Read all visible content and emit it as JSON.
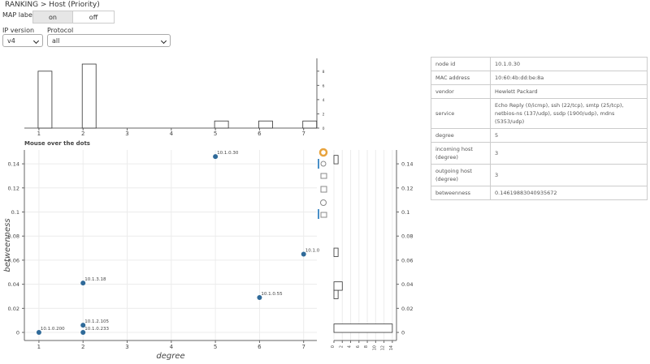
{
  "breadcrumb": "RANKING > Host (Priority)",
  "map_label": {
    "label": "MAP label",
    "options": [
      "on",
      "off"
    ]
  },
  "ip_version": {
    "label": "IP version",
    "value": "v4"
  },
  "protocol": {
    "label": "Protocol",
    "value": "all"
  },
  "chart_data": [
    {
      "type": "bar",
      "x": [
        1,
        2,
        5,
        6,
        7
      ],
      "values": [
        8,
        9,
        1,
        1,
        1
      ],
      "color": "#ffffff",
      "xlim": [
        0.67,
        7.3
      ],
      "xticks": [
        1,
        2,
        3,
        4,
        5,
        6,
        7
      ],
      "ylim": [
        0,
        9.8
      ],
      "yticks": [
        0,
        2,
        4,
        6,
        8
      ],
      "grid": false
    },
    {
      "type": "scatter",
      "title": "Mouse over the dots",
      "x_label": "degree",
      "y_label": "betweenness",
      "x": [
        1,
        2,
        2,
        2,
        5,
        6,
        7
      ],
      "values": [
        0,
        0.041,
        0.006,
        0,
        0.146,
        0.029,
        0.065
      ],
      "point_labels": [
        "10.1.0.200",
        "10.1.3.18",
        "10.1.2.105",
        "10.1.0.233",
        "10.1.0.30",
        "10.1.0.55",
        "10.1.0"
      ],
      "color": "#2f6a99",
      "xlim": [
        0.67,
        7.3
      ],
      "xticks": [
        1,
        2,
        3,
        4,
        5,
        6,
        7
      ],
      "ylim": [
        -0.0067,
        0.1515
      ],
      "yticks": [
        0,
        0.02,
        0.04,
        0.06,
        0.08,
        0.1,
        0.12,
        0.14
      ],
      "grid": true
    },
    {
      "type": "histogram",
      "orientation": "horizontal",
      "bins": [
        0,
        0.007,
        0.014,
        0.021,
        0.028,
        0.035,
        0.042,
        0.049,
        0.056,
        0.063,
        0.07,
        0.077,
        0.084,
        0.091,
        0.098,
        0.105,
        0.112,
        0.119,
        0.126,
        0.133,
        0.14,
        0.147
      ],
      "values": [
        14,
        0,
        0,
        0,
        1,
        2,
        0,
        0,
        0,
        1,
        0,
        0,
        0,
        0,
        0,
        0,
        0,
        0,
        0,
        0,
        1
      ],
      "color": "#ffffff",
      "xlim": [
        0,
        15
      ],
      "xticks": [
        0,
        2,
        4,
        6,
        8,
        10,
        12,
        14
      ],
      "ylim": [
        -0.0067,
        0.1515
      ],
      "yticks": [
        0,
        0.02,
        0.04,
        0.06,
        0.08,
        0.1,
        0.12,
        0.14
      ],
      "grid": true
    }
  ],
  "table": {
    "rows": [
      [
        "node id",
        "10.1.0.30"
      ],
      [
        "MAC address",
        "10:60:4b:dd:be:8a"
      ],
      [
        "vendor",
        "Hewlett Packard"
      ],
      [
        "service",
        "Echo Reply (0/icmp), ssh (22/tcp), smtp (25/tcp), netbios-ns (137/udp), ssdp (1900/udp), mdns (5353/udp)"
      ],
      [
        "degree",
        "5"
      ],
      [
        "incoming host (degree)",
        "3"
      ],
      [
        "outgoing host (degree)",
        "3"
      ],
      [
        "betweenness",
        "0.14619883040935672"
      ]
    ]
  }
}
